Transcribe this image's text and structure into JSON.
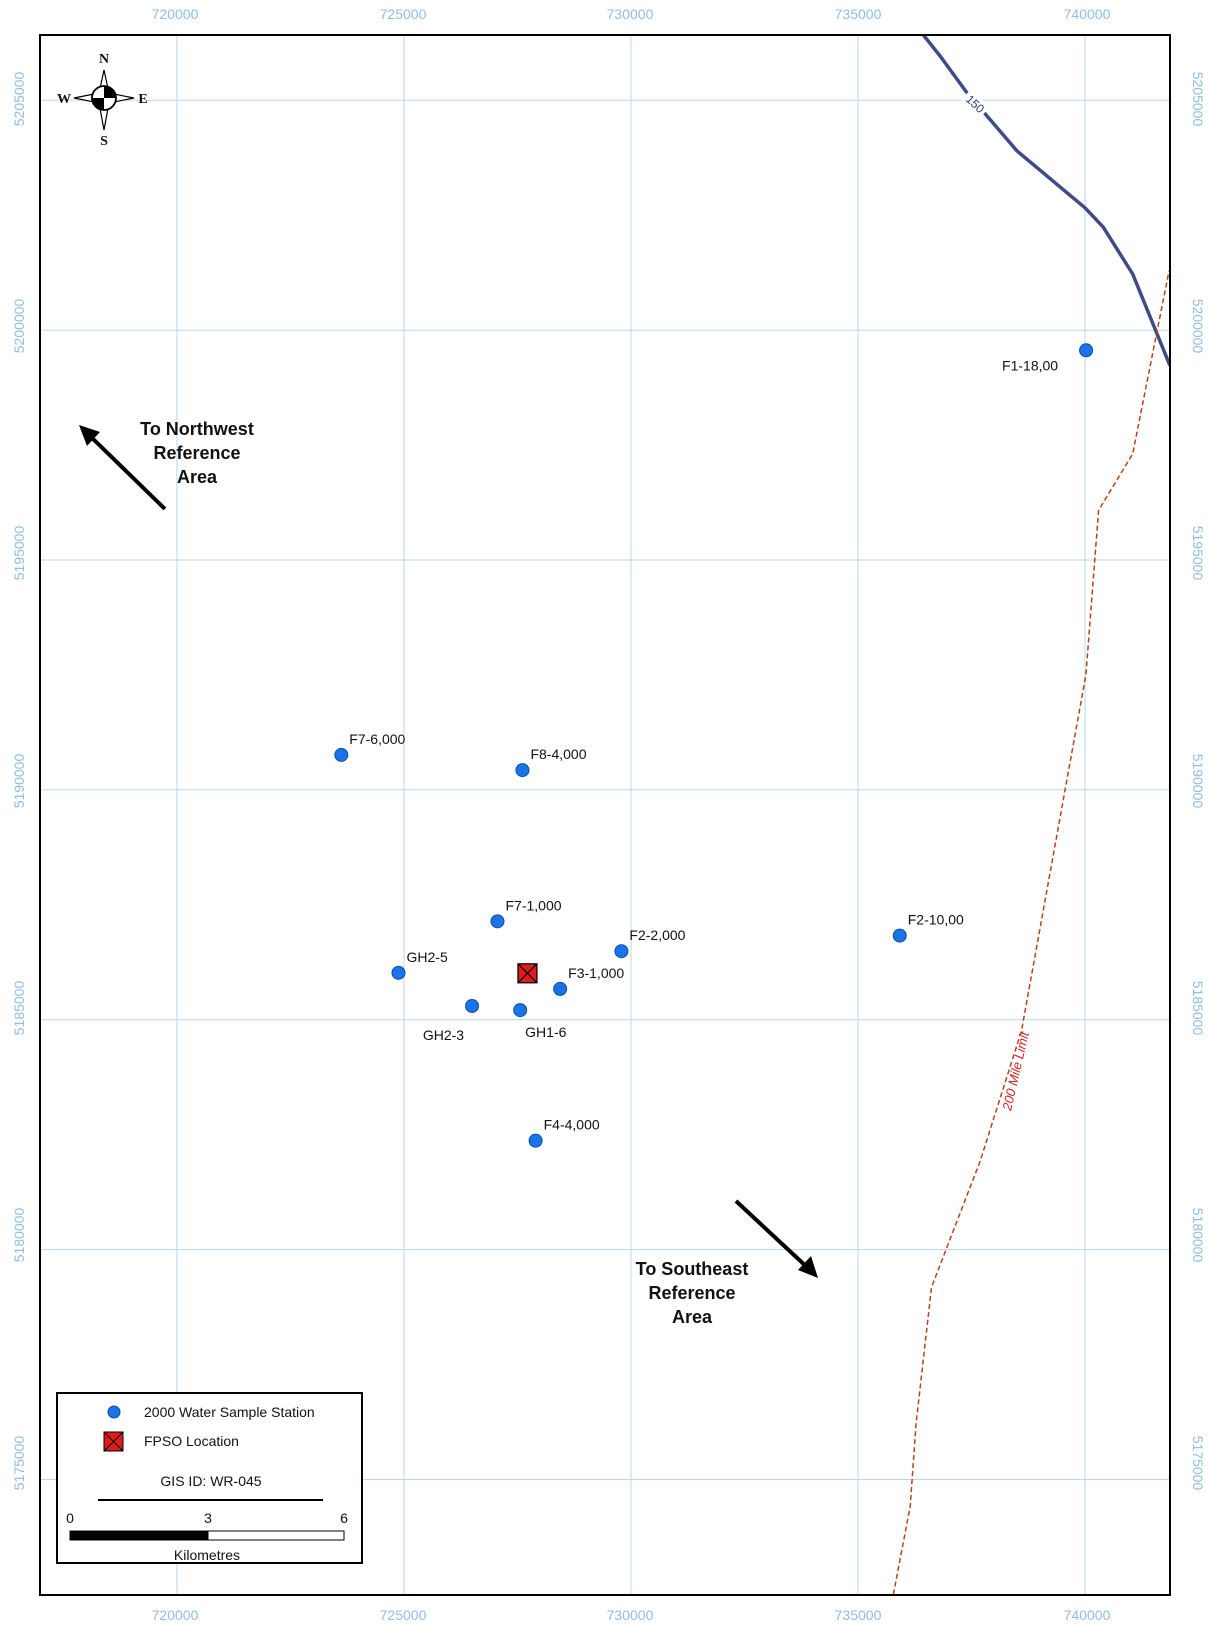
{
  "map": {
    "x_ticks": [
      720000,
      725000,
      730000,
      735000,
      740000
    ],
    "y_ticks": [
      5205000,
      5200000,
      5195000,
      5190000,
      5185000,
      5180000,
      5175000
    ],
    "x_tick_labels": [
      "720000",
      "725000",
      "730000",
      "735000",
      "740000"
    ],
    "y_tick_labels": [
      "5205000",
      "5200000",
      "5195000",
      "5190000",
      "5185000",
      "5180000",
      "5175000"
    ],
    "extent": {
      "x_min": 716984,
      "x_max": 741872,
      "y_min": 5172488,
      "y_max": 5206418
    },
    "colors": {
      "grid": "#b7d7f2",
      "tick_label": "#8fbde6",
      "station": "#1a73e8",
      "fpso": "#e01b1b",
      "depth_contour": "#3f4b86",
      "limit_line": "#b5431a",
      "limit_label": "#d42020"
    }
  },
  "compass": {
    "north": "N",
    "south": "S",
    "east": "E",
    "west": "W"
  },
  "stations": [
    {
      "label": "F1-18,00",
      "x": 740024,
      "y": 5199560,
      "label_side": "left"
    },
    {
      "label": "F7-6,000",
      "x": 723620,
      "y": 5190760,
      "label_side": "above-right"
    },
    {
      "label": "F8-4,000",
      "x": 727610,
      "y": 5190430,
      "label_side": "above-right"
    },
    {
      "label": "F7-1,000",
      "x": 727060,
      "y": 5187140,
      "label_side": "above-right"
    },
    {
      "label": "F2-2,000",
      "x": 729790,
      "y": 5186490,
      "label_side": "above-right"
    },
    {
      "label": "F2-10,00",
      "x": 735920,
      "y": 5186830,
      "label_side": "above-right"
    },
    {
      "label": "GH2-5",
      "x": 724880,
      "y": 5186020,
      "label_side": "above-right"
    },
    {
      "label": "F3-1,000",
      "x": 728440,
      "y": 5185670,
      "label_side": "above-right"
    },
    {
      "label": "GH2-3",
      "x": 726500,
      "y": 5185300,
      "label_side": "below-left"
    },
    {
      "label": "GH1-6",
      "x": 727560,
      "y": 5185210,
      "label_side": "below-right"
    },
    {
      "label": "F4-4,000",
      "x": 727900,
      "y": 5182370,
      "label_side": "above-right"
    }
  ],
  "fpso": {
    "x": 727720,
    "y": 5186010
  },
  "depth_contour": {
    "label": "150",
    "points": [
      [
        736430,
        5206430
      ],
      [
        736810,
        5205960
      ],
      [
        737380,
        5205190
      ],
      [
        738500,
        5203900
      ],
      [
        740000,
        5202660
      ],
      [
        740400,
        5202240
      ],
      [
        741050,
        5201220
      ],
      [
        741870,
        5199230
      ]
    ]
  },
  "limit_line": {
    "label": "200 Mile Limit",
    "points": [
      [
        735780,
        5172500
      ],
      [
        736150,
        5174420
      ],
      [
        736280,
        5176220
      ],
      [
        736620,
        5179180
      ],
      [
        737690,
        5181920
      ],
      [
        738600,
        5184750
      ],
      [
        740020,
        5192500
      ],
      [
        740300,
        5196080
      ],
      [
        741050,
        5197310
      ],
      [
        741850,
        5201280
      ]
    ]
  },
  "arrows": [
    {
      "lines": [
        "To Northwest",
        "Reference",
        "Area"
      ]
    },
    {
      "lines": [
        "To Southeast",
        "Reference",
        "Area"
      ]
    }
  ],
  "legend": {
    "station_label": "2000 Water Sample Station",
    "fpso_label": "FPSO Location",
    "gis_id": "GIS ID: WR-045",
    "scale_ticks": [
      "0",
      "3",
      "6"
    ],
    "scale_unit": "Kilometres"
  }
}
